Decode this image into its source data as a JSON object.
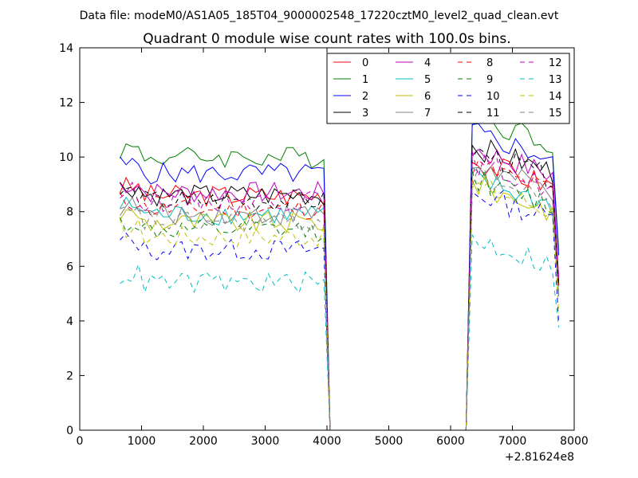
{
  "chart_data": {
    "type": "line",
    "supertitle": "Data file: modeM0/AS1A05_185T04_9000002548_17220cztM0_level2_quad_clean.evt",
    "title": "Quadrant 0 module wise count rates with 100.0s bins.",
    "xlabel": "",
    "ylabel": "",
    "x_offset_label": "+2.81624e8",
    "xlim": [
      0,
      8000
    ],
    "ylim": [
      0,
      14
    ],
    "xticks": [
      "0",
      "1000",
      "2000",
      "3000",
      "4000",
      "5000",
      "6000",
      "7000",
      "8000"
    ],
    "yticks": [
      "0",
      "2",
      "4",
      "6",
      "8",
      "10",
      "12",
      "14"
    ],
    "legend_position": "top-right",
    "gap_range": [
      4200,
      6300
    ],
    "series": [
      {
        "name": "0",
        "color": "#ff0000",
        "dash": "solid",
        "pre": 8.6,
        "post": 9.8
      },
      {
        "name": "1",
        "color": "#008000",
        "dash": "solid",
        "pre": 10.0,
        "post": 11.4
      },
      {
        "name": "2",
        "color": "#0000ff",
        "dash": "solid",
        "pre": 9.4,
        "post": 10.8
      },
      {
        "name": "3",
        "color": "#000000",
        "dash": "solid",
        "pre": 8.6,
        "post": 10.3
      },
      {
        "name": "4",
        "color": "#bf00bf",
        "dash": "solid",
        "pre": 8.7,
        "post": 10.2
      },
      {
        "name": "5",
        "color": "#00bfbf",
        "dash": "solid",
        "pre": 7.9,
        "post": 9.1
      },
      {
        "name": "6",
        "color": "#bfbf00",
        "dash": "solid",
        "pre": 7.6,
        "post": 8.9
      },
      {
        "name": "7",
        "color": "#808080",
        "dash": "solid",
        "pre": 7.9,
        "post": 9.6
      },
      {
        "name": "8",
        "color": "#ff0000",
        "dash": "dashed",
        "pre": 8.1,
        "post": 9.6
      },
      {
        "name": "9",
        "color": "#008000",
        "dash": "dashed",
        "pre": 7.3,
        "post": 9.1
      },
      {
        "name": "10",
        "color": "#0000ff",
        "dash": "dashed",
        "pre": 6.6,
        "post": 8.6
      },
      {
        "name": "11",
        "color": "#000000",
        "dash": "dashed",
        "pre": 8.4,
        "post": 10.1
      },
      {
        "name": "12",
        "color": "#bf00bf",
        "dash": "dashed",
        "pre": 8.4,
        "post": 9.7
      },
      {
        "name": "13",
        "color": "#00bfbf",
        "dash": "dashed",
        "pre": 5.4,
        "post": 6.9
      },
      {
        "name": "14",
        "color": "#bfbf00",
        "dash": "dashed",
        "pre": 7.1,
        "post": 8.9
      },
      {
        "name": "15",
        "color": "#808080",
        "dash": "dashed",
        "pre": 7.6,
        "post": 9.2
      }
    ]
  }
}
